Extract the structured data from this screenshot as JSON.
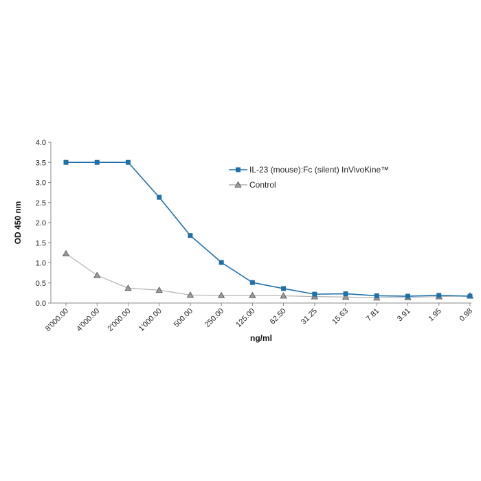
{
  "chart_data": {
    "type": "line",
    "title": "",
    "xlabel": "ng/ml",
    "ylabel": "OD  450 nm",
    "ylim": [
      0,
      4
    ],
    "yticks": [
      "0.0",
      "0.5",
      "1.0",
      "1.5",
      "2.0",
      "2.5",
      "3.0",
      "3.5",
      "4.0"
    ],
    "categories": [
      "8'000.00",
      "4'000.00",
      "2'000.00",
      "1'000.00",
      "500.00",
      "250.00",
      "125.00",
      "62.50",
      "31.25",
      "15.63",
      "7.81",
      "3.91",
      "1.95",
      "0.98"
    ],
    "legend_position": "top-right",
    "series": [
      {
        "name": "IL-23 (mouse):Fc (silent) InVivoKine™",
        "marker": "square",
        "color": "#1f6fa8",
        "values": [
          3.5,
          3.5,
          3.5,
          2.63,
          1.68,
          1.01,
          0.51,
          0.36,
          0.22,
          0.23,
          0.18,
          0.17,
          0.19,
          0.17
        ]
      },
      {
        "name": "Control",
        "marker": "triangle",
        "color": "#b3b3b3",
        "marker_fill": "#9a9a9a",
        "values": [
          1.23,
          0.69,
          0.37,
          0.32,
          0.2,
          0.19,
          0.19,
          0.18,
          0.16,
          0.15,
          0.13,
          0.14,
          0.16,
          0.18
        ]
      }
    ]
  }
}
